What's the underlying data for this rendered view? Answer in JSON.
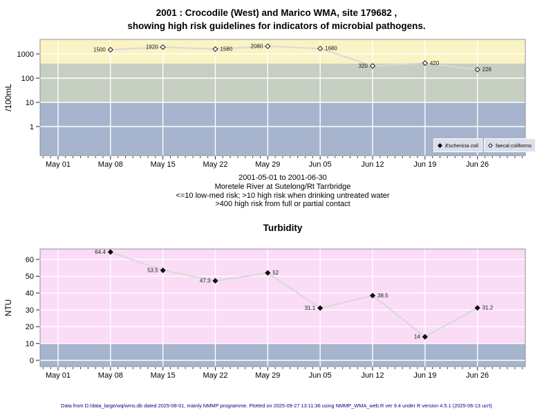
{
  "page": {
    "title_line1": "2001 : Crocodile (West) and Marico WMA, site 179682 ,",
    "title_line2": "showing high risk guidelines for indicators of microbial pathogens.",
    "footer": "Data from D:/data_large/wq/wms.db dated 2025-08-01, mainly NMMP programme. Plotted on 2025-09-27 13:11:36 using NMMP_WMA_web.R ver 9.4 under R version 4.5.1 (2025-06-13 ucrt)"
  },
  "subtext": [
    "2001-05-01 to 2001-06-30",
    "Moretele River at Sutelong/Rt Tarrbridge",
    "<=10 low-med risk; >10 high risk when drinking untreated water",
    ">400 high risk from full or partial contact"
  ],
  "colors": {
    "band_yellow": "#faf3c3",
    "band_green": "#c6cfc1",
    "band_blue": "#a6b5cd",
    "band_pink": "#fadcf7",
    "grid": "#ffffff",
    "plot_border": "#909090",
    "data_line": "#d8d8d8",
    "marker_stroke": "#000000",
    "tick": "#222222",
    "legend_bg": "#dbdfe9",
    "footer_text": "#00008b"
  },
  "chart_data": [
    {
      "type": "line",
      "title": "",
      "ylabel": "/100mL",
      "yscale": "log",
      "ylim": [
        0.0631,
        3981
      ],
      "yticks": [
        1,
        10,
        100,
        1000
      ],
      "ytick_labels": [
        "1",
        "10",
        "100",
        "1000"
      ],
      "x_range_days": [
        0,
        60
      ],
      "x_tick_days": [
        0,
        7,
        14,
        21,
        28,
        35,
        42,
        49,
        56
      ],
      "x_tick_labels": [
        "May 01",
        "May 08",
        "May 15",
        "May 22",
        "May 29",
        "Jun 05",
        "Jun 12",
        "Jun 19",
        "Jun 26"
      ],
      "bands": [
        {
          "name": "high-risk-contact",
          "from": 400,
          "to": 3981,
          "color_key": "band_yellow"
        },
        {
          "name": "high-risk-drinking",
          "from": 10,
          "to": 400,
          "color_key": "band_green"
        },
        {
          "name": "low-med-risk",
          "from": 0.0631,
          "to": 10,
          "color_key": "band_blue"
        }
      ],
      "series": [
        {
          "name": "Eschericia coli",
          "marker": "filled-diamond",
          "points": []
        },
        {
          "name": "faecal coliforms",
          "marker": "open-diamond",
          "points": [
            {
              "day": 7,
              "value": 1500,
              "label": "1500",
              "label_side": "left"
            },
            {
              "day": 14,
              "value": 1920,
              "label": "1920",
              "label_side": "left"
            },
            {
              "day": 21,
              "value": 1580,
              "label": "1580",
              "label_side": "right"
            },
            {
              "day": 28,
              "value": 2080,
              "label": "2080",
              "label_side": "left"
            },
            {
              "day": 35,
              "value": 1680,
              "label": "1680",
              "label_side": "right"
            },
            {
              "day": 42,
              "value": 320,
              "label": "320",
              "label_side": "left"
            },
            {
              "day": 49,
              "value": 420,
              "label": "420",
              "label_side": "right"
            },
            {
              "day": 56,
              "value": 226,
              "label": "226",
              "label_side": "right"
            }
          ]
        }
      ]
    },
    {
      "type": "line",
      "title": "Turbidity",
      "ylabel": "NTU",
      "yscale": "linear",
      "ylim": [
        -3.7,
        66.2
      ],
      "yticks": [
        0,
        10,
        20,
        30,
        40,
        50,
        60
      ],
      "ytick_labels": [
        "0",
        "10",
        "20",
        "30",
        "40",
        "50",
        "60"
      ],
      "x_range_days": [
        0,
        60
      ],
      "x_tick_days": [
        0,
        7,
        14,
        21,
        28,
        35,
        42,
        49,
        56
      ],
      "x_tick_labels": [
        "May 01",
        "May 08",
        "May 15",
        "May 22",
        "May 29",
        "Jun 05",
        "Jun 12",
        "Jun 19",
        "Jun 26"
      ],
      "bands": [
        {
          "name": "above-10-ntu",
          "from": 10,
          "to": 66.2,
          "color_key": "band_pink"
        },
        {
          "name": "below-10-ntu",
          "from": -3.7,
          "to": 10,
          "color_key": "band_blue"
        }
      ],
      "series": [
        {
          "name": "Turbidity",
          "marker": "filled-diamond",
          "points": [
            {
              "day": 7,
              "value": 64.4,
              "label": "64.4",
              "label_side": "left"
            },
            {
              "day": 14,
              "value": 53.5,
              "label": "53.5",
              "label_side": "left"
            },
            {
              "day": 21,
              "value": 47.3,
              "label": "47.3",
              "label_side": "left"
            },
            {
              "day": 28,
              "value": 52,
              "label": "52",
              "label_side": "right"
            },
            {
              "day": 35,
              "value": 31.1,
              "label": "31.1",
              "label_side": "left"
            },
            {
              "day": 42,
              "value": 38.5,
              "label": "38.5",
              "label_side": "right"
            },
            {
              "day": 49,
              "value": 14,
              "label": "14",
              "label_side": "left"
            },
            {
              "day": 56,
              "value": 31.2,
              "label": "31.2",
              "label_side": "right"
            }
          ]
        }
      ]
    }
  ]
}
